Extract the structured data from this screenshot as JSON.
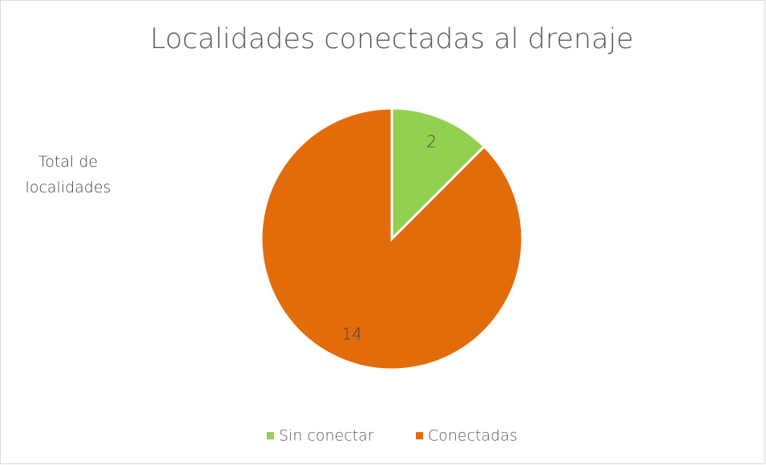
{
  "chart_data": {
    "type": "pie",
    "title": "Localidades conectadas al drenaje",
    "subtitle": "Total de localidades",
    "categories": [
      "Sin conectar",
      "Conectadas"
    ],
    "values": [
      2,
      14
    ],
    "colors": [
      "#92d050",
      "#e36c0a"
    ],
    "legend": "bottom"
  }
}
